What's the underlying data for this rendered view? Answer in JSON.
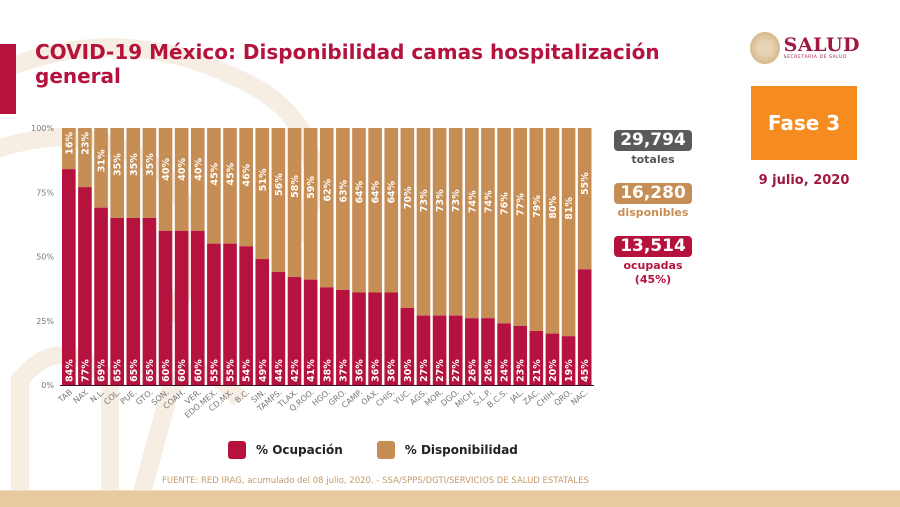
{
  "header": {
    "title": "COVID-19 México: Disponibilidad camas hospitalización general",
    "logo_main": "SALUD",
    "logo_sub": "SECRETARÍA DE SALUD",
    "phase": "Fase 3",
    "date": "9 julio, 2020"
  },
  "stats": {
    "total": {
      "value": "29,794",
      "label": "totales"
    },
    "available": {
      "value": "16,280",
      "label": "disponibles"
    },
    "occupied": {
      "value": "13,514",
      "label": "ocupadas",
      "percent_label": "(45%)"
    }
  },
  "colors": {
    "occupation": "#b5123e",
    "availability": "#c68e55",
    "phase": "#f68b1f",
    "total_badge": "#5a5a5a"
  },
  "legend": {
    "occupation": "% Ocupación",
    "availability": "% Disponibilidad"
  },
  "footer": {
    "source": "FUENTE: RED IRAG, acumulado del 08 julio, 2020. -  SSA/SPPS/DGTI/SERVICIOS DE SALUD ESTATALES"
  },
  "chart_data": {
    "type": "bar",
    "stacked": true,
    "percent_stacked": true,
    "title": "COVID-19 México: Disponibilidad camas hospitalización general",
    "xlabel": "",
    "ylabel": "",
    "ylim": [
      0,
      100
    ],
    "yticks": [
      "0%",
      "25%",
      "50%",
      "75%",
      "100%"
    ],
    "grid": false,
    "legend_position": "bottom",
    "categories": [
      "TAB",
      "NAY.",
      "N.L.",
      "COL.",
      "PUE.",
      "GTO.",
      "SON.",
      "COAH.",
      "VER.",
      "EDO.MEX.",
      "CD.MX.",
      "B.C.",
      "SIN.",
      "TAMPS.",
      "TLAX.",
      "Q.ROO.",
      "HGO.",
      "GRO.",
      "CAMP.",
      "OAX.",
      "CHIS.",
      "YUC.",
      "AGS.",
      "MOR.",
      "DGO.",
      "MICH.",
      "S.L.P.",
      "B.C.S.",
      "JAL.",
      "ZAC.",
      "CHIH.",
      "QRO.",
      "NAC."
    ],
    "series": [
      {
        "name": "% Ocupación",
        "values": [
          84,
          77,
          69,
          65,
          65,
          65,
          60,
          60,
          60,
          55,
          55,
          54,
          49,
          44,
          42,
          41,
          38,
          37,
          36,
          36,
          36,
          30,
          27,
          27,
          27,
          26,
          26,
          24,
          23,
          21,
          20,
          19,
          45
        ]
      },
      {
        "name": "% Disponibilidad",
        "values": [
          16,
          23,
          31,
          35,
          35,
          35,
          40,
          40,
          40,
          45,
          45,
          46,
          51,
          56,
          58,
          59,
          62,
          63,
          64,
          64,
          64,
          70,
          73,
          73,
          73,
          74,
          74,
          76,
          77,
          79,
          80,
          81,
          55
        ]
      }
    ]
  }
}
